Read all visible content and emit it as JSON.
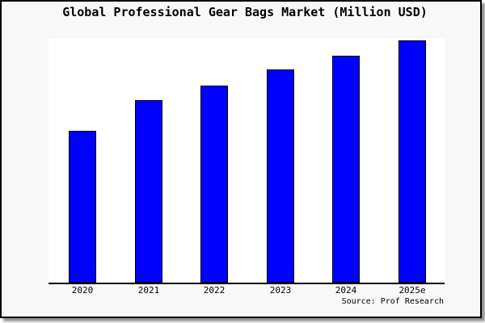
{
  "window": {
    "background": "#f8f8f8",
    "border_color": "#000000",
    "shadow_color": "#8f8f8f",
    "plot_background": "#ffffff"
  },
  "title": "Global Professional Gear Bags Market (Million USD)",
  "source": "Source: Prof Research",
  "chart_data": {
    "type": "bar",
    "title": "Global Professional Gear Bags Market (Million USD)",
    "categories": [
      "2020",
      "2021",
      "2022",
      "2023",
      "2024",
      "2025e"
    ],
    "values": [
      62.7,
      75.3,
      81.3,
      88.0,
      93.8,
      100.0
    ],
    "values_note": "relative index estimated from bar heights; chart displays no y-axis tick labels",
    "xlabel": "",
    "ylabel": "",
    "ylim": [
      0,
      100
    ],
    "grid": false,
    "legend": false,
    "bar_color": "#0000ff",
    "bar_edge_color": "#000000",
    "axis_color": "#000000",
    "source_label": "Source: Prof Research"
  }
}
